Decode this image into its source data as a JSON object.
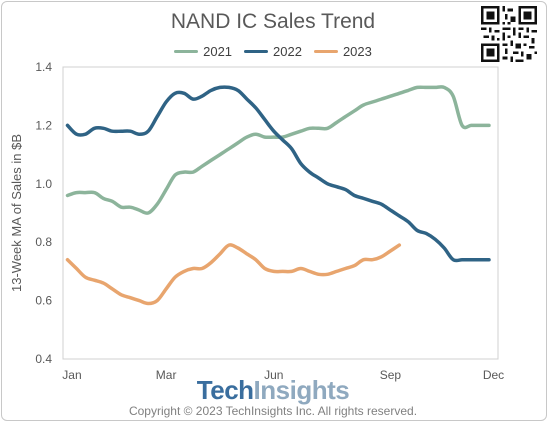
{
  "title": "NAND IC Sales Trend",
  "branding": {
    "logo_part1": "Tech",
    "logo_part2": "Insights",
    "copyright": "Copyright © 2023 TechInsights Inc.  All rights reserved."
  },
  "qr_icon": "qr-code-icon",
  "colors": {
    "2021": "#8cb49b",
    "2022": "#2f6385",
    "2023": "#e8a56e",
    "axis_text": "#595959"
  },
  "chart_data": {
    "type": "line",
    "title": "NAND IC Sales Trend",
    "ylabel": "13-Week MA of Sales in $B",
    "xlabel": "",
    "ylim": [
      0.4,
      1.4
    ],
    "yticks": [
      1.4,
      1.2,
      1.0,
      0.8,
      0.6,
      0.4
    ],
    "ytick_labels": [
      "1.4",
      "1.2",
      "1.0",
      "0.8",
      "0.6",
      "0.4"
    ],
    "xlim": [
      1,
      48
    ],
    "x_ticks": [
      {
        "label": "Jan",
        "week": 1.5
      },
      {
        "label": "Mar",
        "week": 12
      },
      {
        "label": "Jun",
        "week": 24
      },
      {
        "label": "Sep",
        "week": 37
      },
      {
        "label": "Dec",
        "week": 48.5
      }
    ],
    "grid": false,
    "legend": "top",
    "series": [
      {
        "name": "2021",
        "color": "#8cb49b",
        "x": [
          1,
          2,
          3,
          4,
          5,
          6,
          7,
          8,
          9,
          10,
          11,
          12,
          13,
          14,
          15,
          16,
          17,
          18,
          19,
          20,
          21,
          22,
          23,
          24,
          25,
          26,
          27,
          28,
          29,
          30,
          31,
          32,
          33,
          34,
          35,
          36,
          37,
          38,
          39,
          40,
          41,
          42,
          43,
          44,
          45,
          46,
          47,
          48
        ],
        "values": [
          0.96,
          0.97,
          0.97,
          0.97,
          0.95,
          0.94,
          0.92,
          0.92,
          0.91,
          0.9,
          0.93,
          0.98,
          1.03,
          1.04,
          1.04,
          1.06,
          1.08,
          1.1,
          1.12,
          1.14,
          1.16,
          1.17,
          1.16,
          1.16,
          1.16,
          1.17,
          1.18,
          1.19,
          1.19,
          1.19,
          1.21,
          1.23,
          1.25,
          1.27,
          1.28,
          1.29,
          1.3,
          1.31,
          1.32,
          1.33,
          1.33,
          1.33,
          1.33,
          1.3,
          1.2,
          1.2,
          1.2,
          1.2
        ]
      },
      {
        "name": "2022",
        "color": "#2f6385",
        "x": [
          1,
          2,
          3,
          4,
          5,
          6,
          7,
          8,
          9,
          10,
          11,
          12,
          13,
          14,
          15,
          16,
          17,
          18,
          19,
          20,
          21,
          22,
          23,
          24,
          25,
          26,
          27,
          28,
          29,
          30,
          31,
          32,
          33,
          34,
          35,
          36,
          37,
          38,
          39,
          40,
          41,
          42,
          43,
          44,
          45,
          46,
          47,
          48
        ],
        "values": [
          1.2,
          1.17,
          1.17,
          1.19,
          1.19,
          1.18,
          1.18,
          1.18,
          1.17,
          1.18,
          1.23,
          1.28,
          1.31,
          1.31,
          1.29,
          1.3,
          1.32,
          1.33,
          1.33,
          1.32,
          1.29,
          1.26,
          1.22,
          1.18,
          1.15,
          1.12,
          1.07,
          1.04,
          1.02,
          1.0,
          0.99,
          0.98,
          0.96,
          0.95,
          0.94,
          0.93,
          0.91,
          0.89,
          0.87,
          0.84,
          0.83,
          0.81,
          0.78,
          0.74,
          0.74,
          0.74,
          0.74,
          0.74
        ]
      },
      {
        "name": "2023",
        "color": "#e8a56e",
        "x": [
          1,
          2,
          3,
          4,
          5,
          6,
          7,
          8,
          9,
          10,
          11,
          12,
          13,
          14,
          15,
          16,
          17,
          18,
          19,
          20,
          21,
          22,
          23,
          24,
          25,
          26,
          27,
          28,
          29,
          30,
          31,
          32,
          33,
          34,
          35,
          36,
          37,
          38
        ],
        "values": [
          0.74,
          0.71,
          0.68,
          0.67,
          0.66,
          0.64,
          0.62,
          0.61,
          0.6,
          0.59,
          0.6,
          0.64,
          0.68,
          0.7,
          0.71,
          0.71,
          0.73,
          0.76,
          0.79,
          0.78,
          0.76,
          0.74,
          0.71,
          0.7,
          0.7,
          0.7,
          0.71,
          0.7,
          0.69,
          0.69,
          0.7,
          0.71,
          0.72,
          0.74,
          0.74,
          0.75,
          0.77,
          0.79
        ]
      }
    ]
  }
}
